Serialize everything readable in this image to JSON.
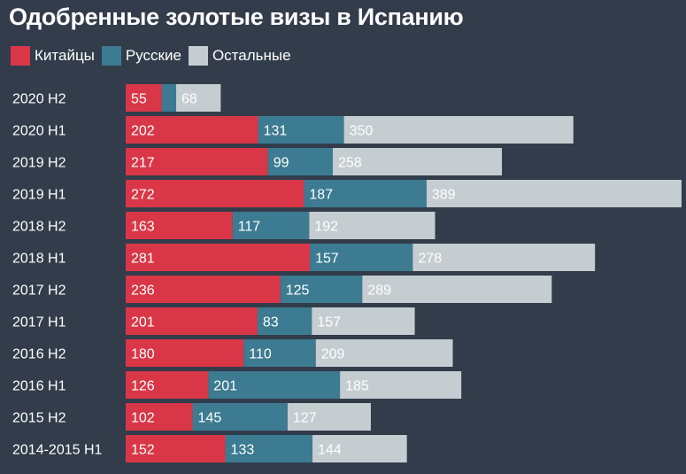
{
  "title": "Одобренные золотые визы в Испанию",
  "colors": {
    "background": "#323c4b",
    "chinese": "#d93747",
    "russian": "#3c7b91",
    "others": "#c5cdd1",
    "text_light": "#ffffff"
  },
  "chart_data": {
    "type": "bar",
    "orientation": "horizontal",
    "stacked": true,
    "title": "Одобренные золотые визы в Испанию",
    "legend_position": "top-left",
    "categories": [
      "2020 H2",
      "2020 H1",
      "2019 H2",
      "2019 H1",
      "2018 H2",
      "2018 H1",
      "2017 H2",
      "2017 H1",
      "2016 H2",
      "2016 H1",
      "2015 H2",
      "2014-2015 H1"
    ],
    "series": [
      {
        "name": "Китайцы",
        "values": [
          55,
          202,
          217,
          272,
          163,
          281,
          236,
          201,
          180,
          126,
          102,
          152
        ],
        "labels": [
          "55",
          "202",
          "217",
          "272",
          "163",
          "281",
          "236",
          "201",
          "180",
          "126",
          "102",
          "152"
        ]
      },
      {
        "name": "Русские",
        "values": [
          22,
          131,
          99,
          187,
          117,
          157,
          125,
          83,
          110,
          201,
          145,
          133
        ],
        "labels": [
          "",
          "131",
          "99",
          "187",
          "117",
          "157",
          "125",
          "83",
          "110",
          "201",
          "145",
          "133"
        ]
      },
      {
        "name": "Остальные",
        "values": [
          68,
          350,
          258,
          389,
          192,
          278,
          289,
          157,
          209,
          185,
          127,
          144
        ],
        "labels": [
          "68",
          "350",
          "258",
          "389",
          "192",
          "278",
          "289",
          "157",
          "209",
          "185",
          "127",
          "144"
        ]
      }
    ],
    "grid": false
  }
}
